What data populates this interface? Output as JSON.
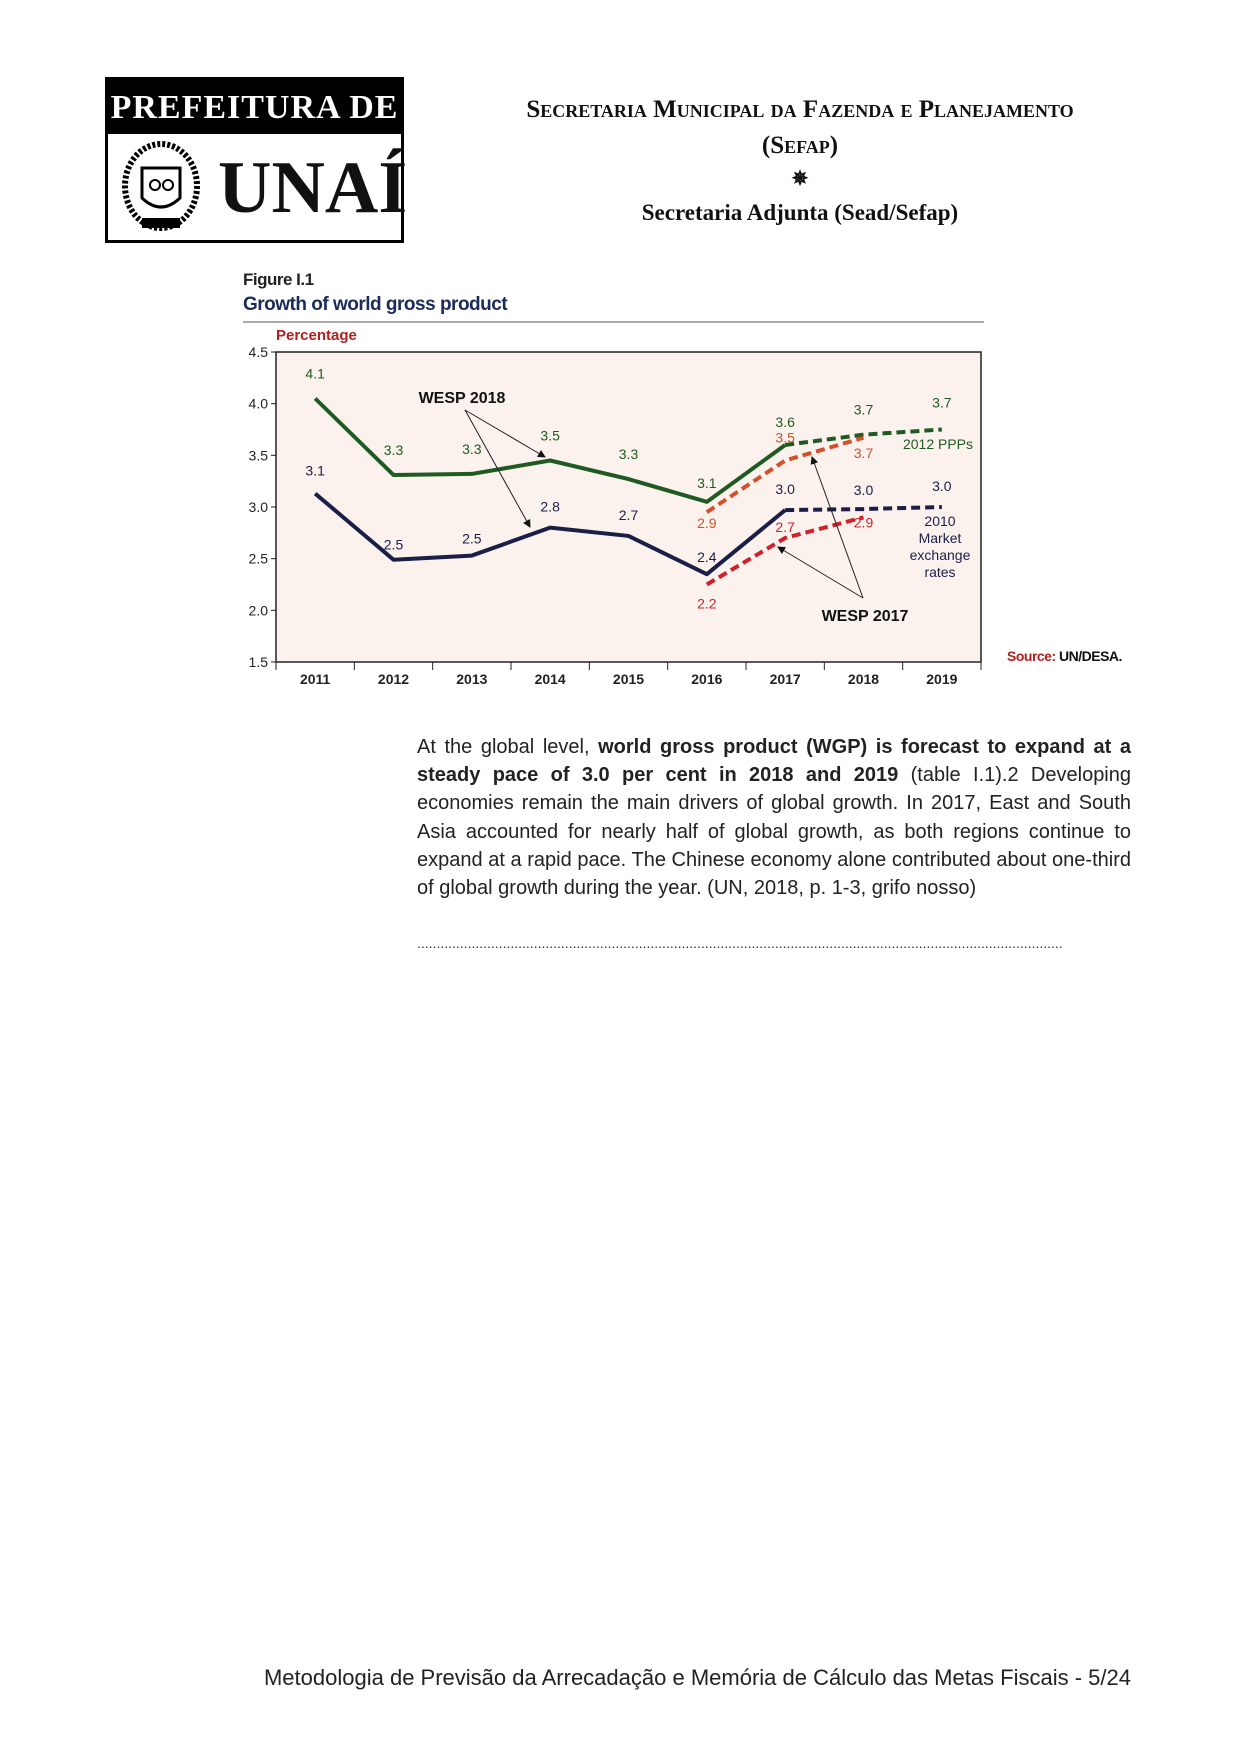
{
  "logo": {
    "top_text": "PREFEITURA DE",
    "city": "UNAÍ"
  },
  "header": {
    "line1": "Secretaria Municipal da Fazenda e Planejamento",
    "line2": "(Sefap)",
    "ornament": "✵",
    "line3": "Secretaria Adjunta (Sead/Sefap)"
  },
  "figure": {
    "number": "Figure I.1",
    "title": "Growth of world gross product",
    "source_key": "Source:",
    "source_value": "UN/DESA."
  },
  "chart_data": {
    "type": "line",
    "title": "Growth of world gross product",
    "ylabel": "Percentage",
    "xlabel": "",
    "ylim": [
      1.5,
      4.5
    ],
    "yticks": [
      "1.5",
      "2.0",
      "2.5",
      "3.0",
      "3.5",
      "4.0",
      "4.5"
    ],
    "categories": [
      "2011",
      "2012",
      "2013",
      "2014",
      "2015",
      "2016",
      "2017",
      "2018",
      "2019"
    ],
    "grid": false,
    "series": [
      {
        "name": "WESP 2018 - 2012 PPPs",
        "color": "#1f5a22",
        "style": "solid",
        "dashed_from": "2017",
        "x": [
          "2011",
          "2012",
          "2013",
          "2014",
          "2015",
          "2016",
          "2017",
          "2018",
          "2019"
        ],
        "values": [
          4.05,
          3.31,
          3.32,
          3.45,
          3.27,
          3.05,
          3.6,
          3.7,
          3.75
        ],
        "labels": [
          "4.1",
          "3.3",
          "3.3",
          "3.5",
          "3.3",
          "3.1",
          "3.6",
          "3.7",
          "3.7"
        ]
      },
      {
        "name": "WESP 2018 - 2010 Market exchange rates",
        "color": "#1b1f48",
        "style": "solid",
        "dashed_from": "2017",
        "x": [
          "2011",
          "2012",
          "2013",
          "2014",
          "2015",
          "2016",
          "2017",
          "2018",
          "2019"
        ],
        "values": [
          3.13,
          2.49,
          2.53,
          2.8,
          2.72,
          2.35,
          2.97,
          2.98,
          3.0
        ],
        "labels": [
          "3.1",
          "2.5",
          "2.5",
          "2.8",
          "2.7",
          "2.4",
          "3.0",
          "3.0",
          "3.0"
        ]
      },
      {
        "name": "WESP 2017 - 2012 PPPs",
        "color": "#d4502a",
        "style": "dashed",
        "dashed_from": "2016",
        "x": [
          "2016",
          "2017",
          "2018"
        ],
        "values": [
          2.95,
          3.45,
          3.67
        ],
        "labels": [
          "2.9",
          "3.5",
          "3.7"
        ]
      },
      {
        "name": "WESP 2017 - 2010 Market exchange rates",
        "color": "#d21f2a",
        "style": "dashed",
        "dashed_from": "2016",
        "x": [
          "2016",
          "2017",
          "2018"
        ],
        "values": [
          2.25,
          2.7,
          2.9
        ],
        "labels": [
          "2.2",
          "2.7",
          "2.9"
        ]
      }
    ],
    "annotations": {
      "wesp2018": "WESP 2018",
      "wesp2017": "WESP 2017",
      "ppp": "2012 PPPs",
      "mer": [
        "2010",
        "Market",
        "exchange",
        "rates"
      ]
    }
  },
  "body": {
    "p_normal1": "At the global level, ",
    "p_bold": "world gross product (WGP) is forecast to expand at a steady pace of 3.0 per cent in 2018 and 2019",
    "p_normal2": " (table I.1).2 Developing economies remain the main drivers of global growth. In 2017, East and South Asia accounted for nearly half of global growth, as both regions continue to expand at a rapid pace. The Chinese economy alone contributed about one-third of global growth during the year. (UN, 2018, p. 1-3, grifo nosso)",
    "dots": "......................................................................................................................................................................"
  },
  "footer": {
    "text": "Metodologia de Previsão da Arrecadação e Memória de Cálculo das Metas Fiscais - 5/24"
  }
}
